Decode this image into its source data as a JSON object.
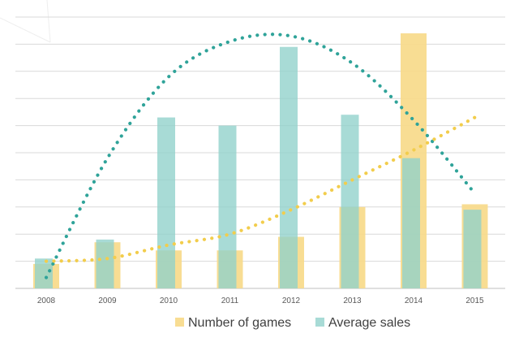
{
  "chart_data": {
    "type": "bar",
    "categories": [
      "2008",
      "2009",
      "2010",
      "2011",
      "2012",
      "2013",
      "2014",
      "2015"
    ],
    "series": [
      {
        "name": "Number of games",
        "values": [
          9,
          17,
          14,
          14,
          19,
          30,
          94,
          31
        ],
        "color": "#F7DA8A",
        "opacity": 0.92
      },
      {
        "name": "Average sales",
        "values": [
          11,
          18,
          63,
          60,
          89,
          64,
          48,
          29
        ],
        "color": "#8FD1CB",
        "opacity": 0.78
      }
    ],
    "trendlines": [
      {
        "series": "Average sales",
        "kind": "polynomial",
        "color": "#2FA399",
        "values": [
          4,
          48,
          78,
          91,
          93,
          83,
          62,
          35
        ]
      },
      {
        "series": "Number of games",
        "kind": "linear",
        "color": "#F2CD4C",
        "values": [
          10,
          11,
          16,
          20,
          29,
          40,
          51,
          63
        ]
      }
    ],
    "ylim": [
      0,
      100
    ],
    "grid": true,
    "legend_position": "bottom",
    "title": "",
    "xlabel": "",
    "ylabel": ""
  }
}
